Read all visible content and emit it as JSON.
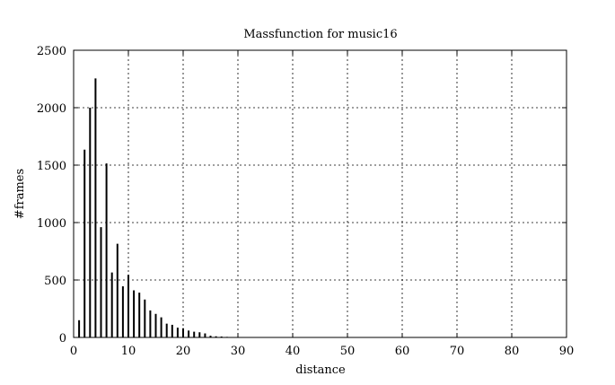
{
  "chart_data": {
    "type": "bar",
    "title": "Massfunction for music16",
    "xlabel": "distance",
    "ylabel": "#frames",
    "xlim": [
      0,
      90
    ],
    "ylim": [
      0,
      2500
    ],
    "xticks": [
      0,
      10,
      20,
      30,
      40,
      50,
      60,
      70,
      80,
      90
    ],
    "yticks": [
      0,
      500,
      1000,
      1500,
      2000,
      2500
    ],
    "grid": true,
    "grid_style": "dotted",
    "bar_color": "#000000",
    "x": [
      1,
      2,
      3,
      4,
      5,
      6,
      7,
      8,
      9,
      10,
      11,
      12,
      13,
      14,
      15,
      16,
      17,
      18,
      19,
      20,
      21,
      22,
      23,
      24,
      25,
      26,
      27,
      28,
      29,
      30
    ],
    "values": [
      150,
      1635,
      2000,
      2255,
      960,
      1515,
      565,
      815,
      445,
      545,
      410,
      390,
      330,
      235,
      205,
      175,
      120,
      110,
      85,
      80,
      60,
      50,
      45,
      35,
      15,
      10,
      8,
      5,
      3,
      2
    ]
  }
}
